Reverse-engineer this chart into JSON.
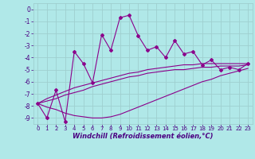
{
  "title": "",
  "xlabel": "Windchill (Refroidissement éolien,°C)",
  "ylabel": "",
  "bg_color": "#b0e8e8",
  "grid_color": "#9fcfcf",
  "line_color": "#8b008b",
  "x_data": [
    0,
    1,
    2,
    3,
    4,
    5,
    6,
    7,
    8,
    9,
    10,
    11,
    12,
    13,
    14,
    15,
    16,
    17,
    18,
    19,
    20,
    21,
    22,
    23
  ],
  "y_main": [
    -7.8,
    -9.0,
    -6.7,
    -9.3,
    -3.5,
    -4.5,
    -6.1,
    -2.1,
    -3.4,
    -0.7,
    -0.5,
    -2.2,
    -3.4,
    -3.1,
    -4.0,
    -2.6,
    -3.7,
    -3.5,
    -4.6,
    -4.2,
    -5.0,
    -4.8,
    -5.0,
    -4.5
  ],
  "y_line1": [
    -7.8,
    -7.4,
    -7.1,
    -6.8,
    -6.5,
    -6.3,
    -6.1,
    -5.9,
    -5.7,
    -5.5,
    -5.3,
    -5.2,
    -5.0,
    -4.9,
    -4.8,
    -4.7,
    -4.6,
    -4.6,
    -4.5,
    -4.5,
    -4.5,
    -4.5,
    -4.5,
    -4.5
  ],
  "y_line2": [
    -7.8,
    -7.6,
    -7.4,
    -7.1,
    -6.9,
    -6.7,
    -6.4,
    -6.2,
    -6.0,
    -5.8,
    -5.6,
    -5.5,
    -5.3,
    -5.2,
    -5.1,
    -5.0,
    -5.0,
    -4.9,
    -4.8,
    -4.8,
    -4.7,
    -4.7,
    -4.7,
    -4.6
  ],
  "y_line3": [
    -7.8,
    -8.1,
    -8.3,
    -8.6,
    -8.8,
    -8.9,
    -9.0,
    -9.0,
    -8.9,
    -8.7,
    -8.4,
    -8.1,
    -7.8,
    -7.5,
    -7.2,
    -6.9,
    -6.6,
    -6.3,
    -6.0,
    -5.8,
    -5.5,
    -5.3,
    -5.1,
    -4.9
  ],
  "xlim": [
    -0.5,
    23.5
  ],
  "ylim": [
    -9.5,
    0.5
  ],
  "yticks": [
    0,
    -1,
    -2,
    -3,
    -4,
    -5,
    -6,
    -7,
    -8,
    -9
  ],
  "xticks": [
    0,
    1,
    2,
    3,
    4,
    5,
    6,
    7,
    8,
    9,
    10,
    11,
    12,
    13,
    14,
    15,
    16,
    17,
    18,
    19,
    20,
    21,
    22,
    23
  ],
  "xlabel_fontsize": 6.0,
  "tick_fontsize": 5.5,
  "xtick_fontsize": 5.0
}
